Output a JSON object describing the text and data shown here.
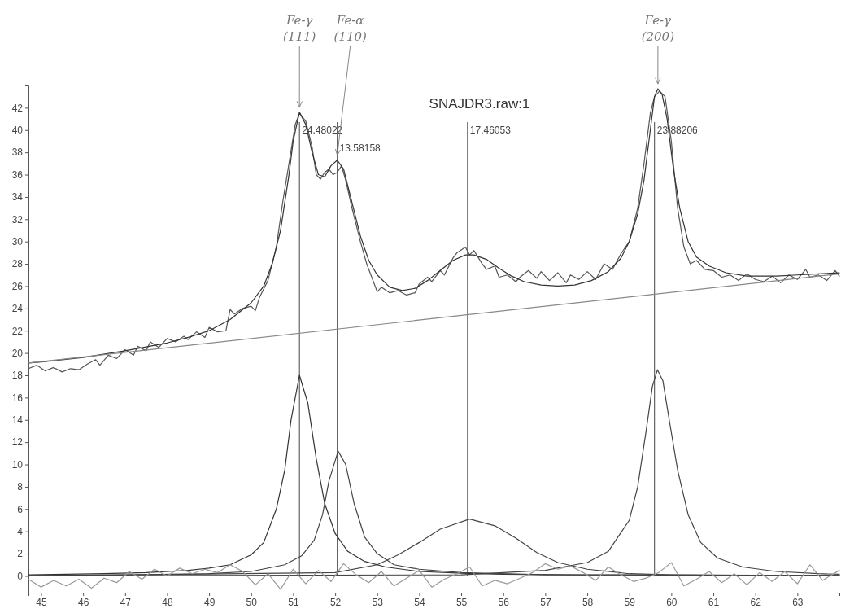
{
  "chart_data": {
    "type": "line",
    "title": "SNAJDR3.raw:1",
    "xlim": [
      44.7,
      64.0
    ],
    "xticks": [
      45,
      46,
      47,
      48,
      49,
      50,
      51,
      52,
      53,
      54,
      55,
      56,
      57,
      58,
      59,
      60,
      61,
      62,
      63
    ],
    "ylim": [
      -1.5,
      44
    ],
    "yticks": [
      0,
      2,
      4,
      6,
      8,
      10,
      12,
      14,
      16,
      18,
      20,
      22,
      24,
      26,
      28,
      30,
      32,
      34,
      36,
      38,
      40,
      42
    ],
    "ref_lines": [
      {
        "axis": "x",
        "value": 51.15,
        "color": "#444444"
      },
      {
        "axis": "x",
        "value": 52.05,
        "color": "#444444"
      },
      {
        "axis": "x",
        "value": 55.15,
        "color": "#444444"
      },
      {
        "axis": "x",
        "value": 59.6,
        "color": "#444444"
      }
    ],
    "annotations": [
      {
        "text": "24.48022",
        "x": 51.15,
        "y": 40
      },
      {
        "text": "13.58158",
        "x": 52.05,
        "y": 38.4
      },
      {
        "text": "17.46053",
        "x": 55.15,
        "y": 40
      },
      {
        "text": "23.88206",
        "x": 59.6,
        "y": 40
      },
      {
        "text": "Fe-γ (111)",
        "x": 51.15,
        "y": 41.6
      },
      {
        "text": "Fe-α (110)",
        "x": 52.05,
        "y": 37.3
      },
      {
        "text": "Fe-γ (200)",
        "x": 59.68,
        "y": 43.7
      }
    ],
    "series": [
      {
        "color": "#555555",
        "x": [
          44.7,
          44.9,
          45.1,
          45.3,
          45.5,
          45.7,
          45.9,
          46.1,
          46.3,
          46.4,
          46.6,
          46.8,
          47.0,
          47.2,
          47.3,
          47.5,
          47.6,
          47.8,
          48.0,
          48.2,
          48.4,
          48.5,
          48.7,
          48.9,
          49.0,
          49.2,
          49.4,
          49.5,
          49.6,
          49.8,
          50.0,
          50.1,
          50.2,
          50.4,
          50.6,
          50.75,
          50.9,
          51.05,
          51.15,
          51.3,
          51.45,
          51.55,
          51.65,
          51.75,
          51.85,
          51.95,
          52.05,
          52.15,
          52.25,
          52.4,
          52.5,
          52.6,
          52.75,
          52.9,
          53.0,
          53.1,
          53.3,
          53.5,
          53.7,
          53.9,
          54.0,
          54.2,
          54.3,
          54.5,
          54.6,
          54.8,
          54.9,
          55.1,
          55.2,
          55.3,
          55.5,
          55.6,
          55.8,
          55.9,
          56.1,
          56.3,
          56.4,
          56.6,
          56.8,
          56.9,
          57.1,
          57.3,
          57.5,
          57.6,
          57.8,
          58.0,
          58.2,
          58.4,
          58.6,
          58.8,
          59.0,
          59.2,
          59.35,
          59.5,
          59.6,
          59.72,
          59.85,
          60.0,
          60.15,
          60.3,
          60.45,
          60.6,
          60.8,
          61.0,
          61.2,
          61.4,
          61.6,
          61.8,
          62.0,
          62.2,
          62.4,
          62.6,
          62.8,
          63.0,
          63.2,
          63.3,
          63.5,
          63.7,
          63.9,
          64.0
        ],
        "values": [
          18.6,
          18.9,
          18.4,
          18.7,
          18.3,
          18.6,
          18.5,
          19.0,
          19.4,
          18.9,
          19.8,
          19.5,
          20.3,
          19.8,
          20.6,
          20.2,
          21.0,
          20.5,
          21.3,
          21.0,
          21.5,
          21.2,
          21.9,
          21.4,
          22.3,
          21.9,
          22.0,
          23.9,
          23.5,
          24.0,
          24.2,
          23.8,
          25.0,
          26.5,
          29.5,
          33.5,
          37.0,
          40.5,
          41.5,
          40.8,
          38.5,
          36.0,
          35.6,
          36.2,
          36.5,
          36.0,
          36.2,
          36.8,
          35.5,
          33.0,
          31.5,
          30.0,
          28.0,
          26.5,
          25.5,
          25.9,
          25.4,
          25.6,
          25.2,
          25.4,
          26.2,
          26.8,
          26.4,
          27.4,
          27.0,
          28.5,
          29.0,
          29.5,
          28.8,
          29.2,
          28.0,
          27.5,
          27.8,
          26.8,
          27.0,
          26.4,
          26.8,
          27.4,
          26.7,
          27.3,
          26.5,
          27.2,
          26.3,
          27.0,
          26.6,
          27.3,
          26.6,
          28.0,
          27.5,
          28.9,
          30.0,
          33.0,
          37.0,
          41.5,
          43.0,
          43.5,
          43.0,
          39.0,
          33.0,
          29.5,
          28.0,
          28.3,
          27.5,
          27.4,
          26.8,
          27.0,
          26.5,
          27.1,
          26.6,
          26.4,
          26.9,
          26.3,
          27.0,
          26.6,
          27.5,
          26.8,
          27.0,
          26.5,
          27.4,
          26.9
        ]
      },
      {
        "color": "#333333",
        "x": [
          44.7,
          45,
          46,
          47,
          48,
          48.5,
          49,
          49.5,
          50,
          50.3,
          50.5,
          50.7,
          50.9,
          51.0,
          51.15,
          51.3,
          51.45,
          51.6,
          51.75,
          51.9,
          52.05,
          52.2,
          52.4,
          52.6,
          52.8,
          53.0,
          53.3,
          53.6,
          53.9,
          54.2,
          54.5,
          54.8,
          55.1,
          55.3,
          55.6,
          55.9,
          56.2,
          56.5,
          56.9,
          57.3,
          57.7,
          58.1,
          58.5,
          58.8,
          59.0,
          59.2,
          59.35,
          59.5,
          59.6,
          59.68,
          59.78,
          59.9,
          60.05,
          60.2,
          60.4,
          60.6,
          60.9,
          61.3,
          61.8,
          62.5,
          63.0,
          63.5,
          64.0
        ],
        "values": [
          19.1,
          19.2,
          19.6,
          20.2,
          20.9,
          21.4,
          22.0,
          23.0,
          24.5,
          26.0,
          28.0,
          31.0,
          36.0,
          39.0,
          41.6,
          40.5,
          38.0,
          36.0,
          35.8,
          36.8,
          37.3,
          36.5,
          33.5,
          30.5,
          28.3,
          27.0,
          25.9,
          25.6,
          25.8,
          26.5,
          27.4,
          28.3,
          28.8,
          28.8,
          28.4,
          27.6,
          26.9,
          26.4,
          26.1,
          26.0,
          26.1,
          26.5,
          27.3,
          28.5,
          30.0,
          32.5,
          35.5,
          40.0,
          43.0,
          43.7,
          43.2,
          41.0,
          36.5,
          33.0,
          30.0,
          28.6,
          27.8,
          27.2,
          26.9,
          26.9,
          27.0,
          27.1,
          27.2
        ]
      },
      {
        "color": "#888888",
        "x": [
          44.7,
          64.0
        ],
        "values": [
          19.1,
          27.1
        ]
      },
      {
        "color": "#333333",
        "x": [
          44.7,
          46.5,
          47.5,
          48.5,
          49.0,
          49.5,
          50.0,
          50.3,
          50.6,
          50.8,
          50.95,
          51.15,
          51.35,
          51.55,
          51.75,
          52.0,
          52.3,
          52.7,
          53.2,
          54.0,
          55.0,
          56.0,
          58.0,
          64.0
        ],
        "values": [
          0.1,
          0.2,
          0.3,
          0.5,
          0.7,
          1.0,
          1.9,
          3.0,
          6.0,
          9.5,
          14.0,
          18.0,
          15.5,
          10.5,
          6.5,
          3.8,
          2.2,
          1.3,
          0.8,
          0.4,
          0.25,
          0.15,
          0.1,
          0.05
        ]
      },
      {
        "color": "#444444",
        "x": [
          44.7,
          47,
          49,
          50,
          50.8,
          51.2,
          51.5,
          51.7,
          51.85,
          52.07,
          52.25,
          52.45,
          52.7,
          53.0,
          53.4,
          54.0,
          55.0,
          57.0,
          64.0
        ],
        "values": [
          0.05,
          0.1,
          0.2,
          0.4,
          1.0,
          1.8,
          3.2,
          5.5,
          8.5,
          11.2,
          10.0,
          6.5,
          3.5,
          2.0,
          1.0,
          0.6,
          0.3,
          0.1,
          0.05
        ]
      },
      {
        "color": "#444444",
        "x": [
          44.7,
          52.0,
          53.0,
          53.5,
          54.0,
          54.5,
          55.2,
          55.8,
          56.3,
          56.8,
          57.3,
          58.0,
          59.0,
          60.0,
          64.0
        ],
        "values": [
          0.0,
          0.3,
          1.0,
          1.9,
          3.0,
          4.2,
          5.1,
          4.5,
          3.4,
          2.1,
          1.2,
          0.6,
          0.2,
          0.1,
          0.0
        ]
      },
      {
        "color": "#444444",
        "x": [
          44.7,
          55.0,
          57.0,
          58.0,
          58.5,
          59.0,
          59.2,
          59.4,
          59.55,
          59.67,
          59.8,
          59.95,
          60.15,
          60.4,
          60.7,
          61.1,
          61.7,
          62.5,
          63.5,
          64.0
        ],
        "values": [
          0.0,
          0.1,
          0.5,
          1.2,
          2.2,
          5.0,
          8.0,
          13.0,
          17.0,
          18.5,
          17.5,
          14.0,
          9.5,
          5.5,
          3.0,
          1.6,
          0.8,
          0.4,
          0.2,
          0.15
        ]
      },
      {
        "color": "#999999",
        "x": [
          44.7,
          45.0,
          45.3,
          45.6,
          45.9,
          46.2,
          46.5,
          46.8,
          47.1,
          47.4,
          47.7,
          48.0,
          48.3,
          48.6,
          48.9,
          49.2,
          49.5,
          49.8,
          50.1,
          50.4,
          50.7,
          51.0,
          51.3,
          51.6,
          51.9,
          52.2,
          52.5,
          52.8,
          53.1,
          53.4,
          53.7,
          54.0,
          54.3,
          54.6,
          54.9,
          55.2,
          55.5,
          55.8,
          56.1,
          56.4,
          56.7,
          57.0,
          57.3,
          57.6,
          57.9,
          58.2,
          58.5,
          58.8,
          59.1,
          59.4,
          59.7,
          60.0,
          60.3,
          60.6,
          60.9,
          61.2,
          61.5,
          61.8,
          62.1,
          62.4,
          62.7,
          63.0,
          63.3,
          63.6,
          64.0
        ],
        "values": [
          -0.3,
          -1.0,
          -0.4,
          -0.9,
          -0.3,
          -1.1,
          -0.2,
          -0.6,
          0.4,
          -0.3,
          0.6,
          0.0,
          0.7,
          0.2,
          0.6,
          0.3,
          1.0,
          0.4,
          -0.8,
          0.2,
          -1.2,
          0.6,
          -0.7,
          0.5,
          -0.5,
          1.1,
          0.1,
          -0.6,
          0.4,
          -0.9,
          -0.2,
          0.5,
          -1.0,
          -0.3,
          0.2,
          0.8,
          -0.9,
          -0.4,
          -0.7,
          -0.2,
          0.3,
          1.1,
          0.6,
          0.9,
          0.3,
          -0.4,
          0.8,
          0.1,
          -0.5,
          -0.2,
          0.3,
          1.2,
          -0.9,
          -0.3,
          0.4,
          -0.6,
          0.2,
          -0.8,
          0.3,
          -0.5,
          0.4,
          -0.7,
          1.0,
          -0.4,
          0.5
        ]
      }
    ]
  }
}
